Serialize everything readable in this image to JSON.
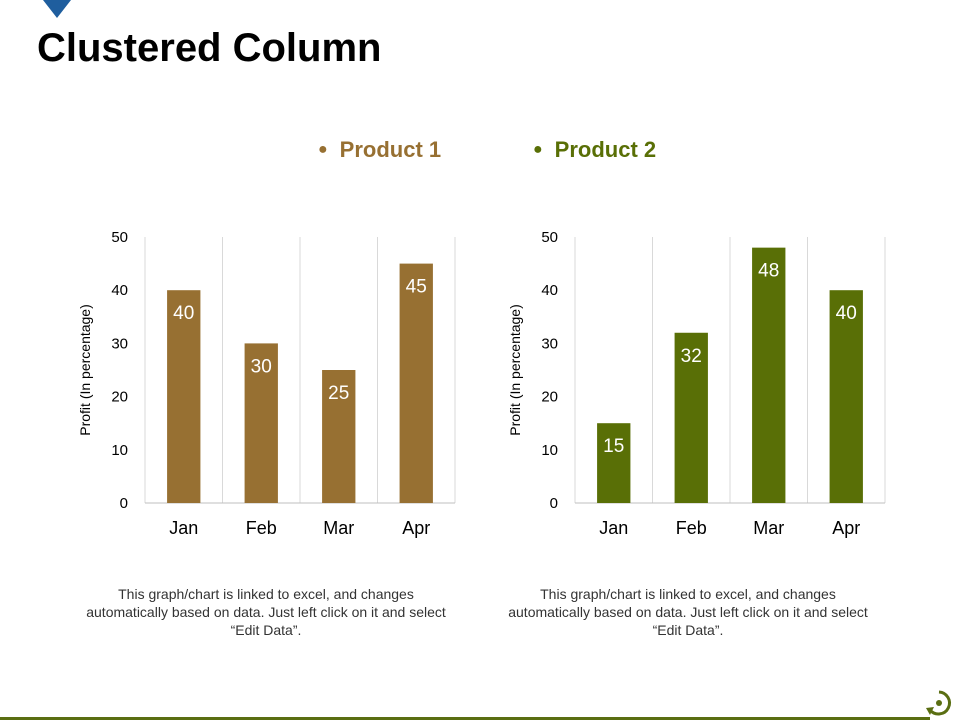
{
  "title": "Clustered Column",
  "colors": {
    "product1": "#977032",
    "product2": "#596f06",
    "accent_blue": "#1f5e9e",
    "footer": "#5a6e12"
  },
  "legend": [
    {
      "label": "Product 1",
      "color": "#977032"
    },
    {
      "label": "Product 2",
      "color": "#596f06"
    }
  ],
  "notes": [
    "This graph/chart is linked to excel, and changes automatically based on data. Just left click on it and select “Edit Data”.",
    "This graph/chart is linked to excel, and changes automatically based on data. Just left click on it and select “Edit Data”."
  ],
  "chart_data": [
    {
      "type": "bar",
      "categories": [
        "Jan",
        "Feb",
        "Mar",
        "Apr"
      ],
      "values": [
        40,
        30,
        25,
        45
      ],
      "ylabel": "Profit  (In percentage)",
      "ylim": [
        0,
        50
      ],
      "yticks": [
        "0",
        "10",
        "20",
        "30",
        "40",
        "50"
      ],
      "color": "#977032",
      "grid": "vertical"
    },
    {
      "type": "bar",
      "categories": [
        "Jan",
        "Feb",
        "Mar",
        "Apr"
      ],
      "values": [
        15,
        32,
        48,
        40
      ],
      "ylabel": "Profit  (In percentage)",
      "ylim": [
        0,
        50
      ],
      "yticks": [
        "0",
        "10",
        "20",
        "30",
        "40",
        "50"
      ],
      "color": "#596f06",
      "grid": "vertical"
    }
  ]
}
